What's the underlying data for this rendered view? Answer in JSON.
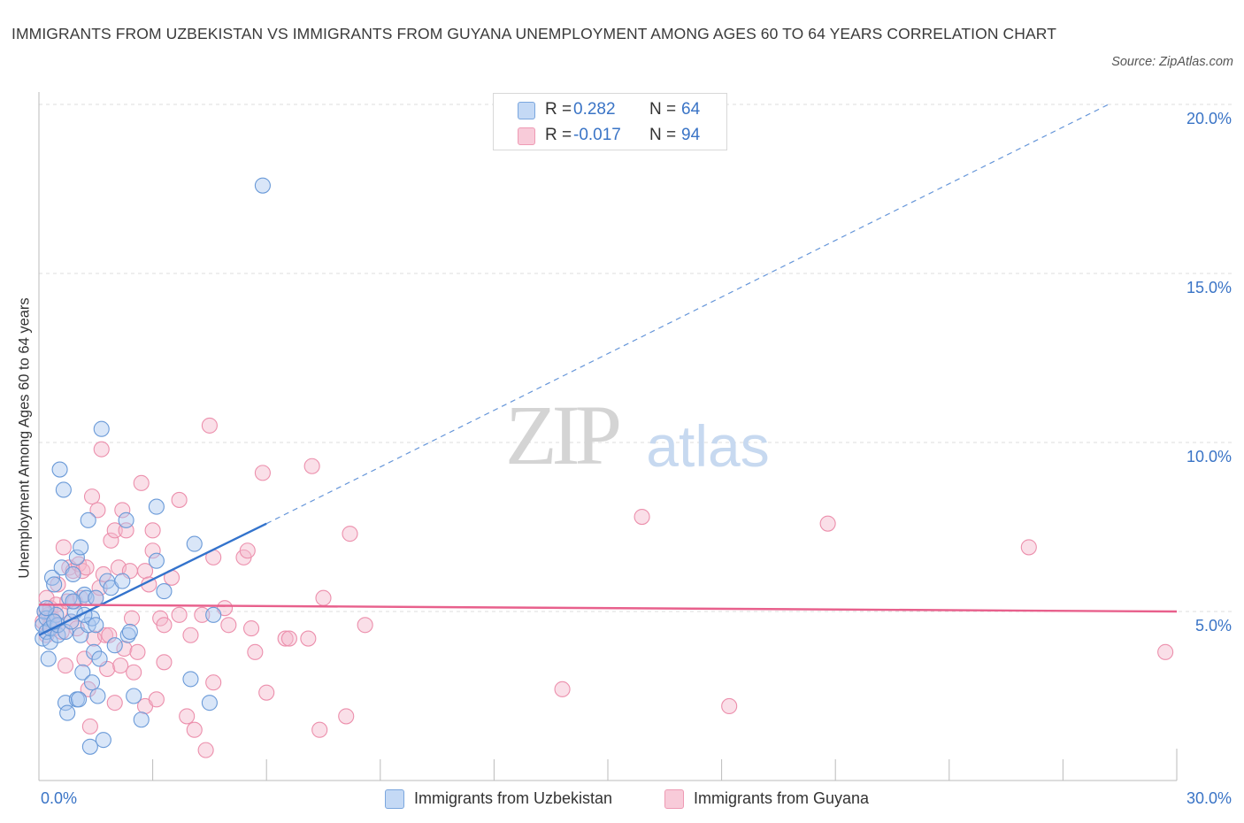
{
  "title": "IMMIGRANTS FROM UZBEKISTAN VS IMMIGRANTS FROM GUYANA UNEMPLOYMENT AMONG AGES 60 TO 64 YEARS CORRELATION CHART",
  "source": "Source: ZipAtlas.com",
  "watermark": {
    "zip": "ZIP",
    "atlas": "atlas"
  },
  "legend": {
    "rows": [
      {
        "r_label": "R =",
        "r_value": "0.282",
        "n_label": "N =",
        "n_value": "64"
      },
      {
        "r_label": "R =",
        "r_value": "-0.017",
        "n_label": "N =",
        "n_value": "94"
      }
    ]
  },
  "colors": {
    "uzbekistan_fill": "#aac8f0",
    "uzbekistan_stroke": "#6a9ad8",
    "uzbekistan_line": "#3373cc",
    "guyana_fill": "#f5b8cb",
    "guyana_stroke": "#ec8fac",
    "guyana_line": "#e8608c",
    "axis_label_color": "#3a74c6",
    "grid": "#dcdcdc"
  },
  "chart_data": {
    "type": "scatter",
    "title": "IMMIGRANTS FROM UZBEKISTAN VS IMMIGRANTS FROM GUYANA UNEMPLOYMENT AMONG AGES 60 TO 64 YEARS CORRELATION CHART",
    "xlabel": "",
    "ylabel": "Unemployment Among Ages 60 to 64 years",
    "xlim": [
      0,
      30
    ],
    "ylim": [
      0,
      20
    ],
    "x_tick_labels": [
      "0.0%",
      "30.0%"
    ],
    "y_tick_labels": [
      "5.0%",
      "10.0%",
      "15.0%",
      "20.0%"
    ],
    "y_ticks": [
      5,
      10,
      15,
      20
    ],
    "grid": true,
    "legend_position": "top-center",
    "series": [
      {
        "name": "Immigrants from Uzbekistan",
        "r": 0.282,
        "n": 64,
        "trend": {
          "x0": 0,
          "y0": 4.3,
          "x1": 6.0,
          "y1": 7.6,
          "dashed_to_x": 28.2,
          "dashed_to_y": 20.0
        },
        "points": [
          [
            0.1,
            4.2
          ],
          [
            0.1,
            4.6
          ],
          [
            0.15,
            5.0
          ],
          [
            0.2,
            4.4
          ],
          [
            0.2,
            4.8
          ],
          [
            0.25,
            3.6
          ],
          [
            0.3,
            4.1
          ],
          [
            0.3,
            4.5
          ],
          [
            0.35,
            6.0
          ],
          [
            0.4,
            5.8
          ],
          [
            0.45,
            4.9
          ],
          [
            0.5,
            4.3
          ],
          [
            0.5,
            4.6
          ],
          [
            0.55,
            9.2
          ],
          [
            0.6,
            6.3
          ],
          [
            0.65,
            8.6
          ],
          [
            0.7,
            2.3
          ],
          [
            0.7,
            4.4
          ],
          [
            0.75,
            2.0
          ],
          [
            0.8,
            5.4
          ],
          [
            0.85,
            4.7
          ],
          [
            0.9,
            6.1
          ],
          [
            0.95,
            5.0
          ],
          [
            1.0,
            6.6
          ],
          [
            1.0,
            2.4
          ],
          [
            1.05,
            2.4
          ],
          [
            1.1,
            6.9
          ],
          [
            1.1,
            4.3
          ],
          [
            1.15,
            3.2
          ],
          [
            1.2,
            5.5
          ],
          [
            1.25,
            5.4
          ],
          [
            1.3,
            4.6
          ],
          [
            1.3,
            7.7
          ],
          [
            1.35,
            1.0
          ],
          [
            1.4,
            2.9
          ],
          [
            1.4,
            4.8
          ],
          [
            1.45,
            3.8
          ],
          [
            1.5,
            4.6
          ],
          [
            1.5,
            5.4
          ],
          [
            1.55,
            2.5
          ],
          [
            1.6,
            3.6
          ],
          [
            1.65,
            10.4
          ],
          [
            1.7,
            1.2
          ],
          [
            1.8,
            5.9
          ],
          [
            1.9,
            5.7
          ],
          [
            2.0,
            4.0
          ],
          [
            2.2,
            5.9
          ],
          [
            2.3,
            7.7
          ],
          [
            2.35,
            4.3
          ],
          [
            2.4,
            4.4
          ],
          [
            2.5,
            2.5
          ],
          [
            2.7,
            1.8
          ],
          [
            3.1,
            6.5
          ],
          [
            3.1,
            8.1
          ],
          [
            3.3,
            5.6
          ],
          [
            4.0,
            3.0
          ],
          [
            4.1,
            7.0
          ],
          [
            4.5,
            2.3
          ],
          [
            4.6,
            4.9
          ],
          [
            5.9,
            17.6
          ],
          [
            0.4,
            4.7
          ],
          [
            0.9,
            5.3
          ],
          [
            0.2,
            5.1
          ],
          [
            1.2,
            4.9
          ]
        ]
      },
      {
        "name": "Immigrants from Guyana",
        "r": -0.017,
        "n": 94,
        "trend": {
          "x0": 0,
          "y0": 5.2,
          "x1": 30,
          "y1": 5.0
        },
        "points": [
          [
            0.1,
            4.7
          ],
          [
            0.15,
            5.0
          ],
          [
            0.2,
            4.3
          ],
          [
            0.2,
            5.4
          ],
          [
            0.25,
            4.9
          ],
          [
            0.3,
            4.6
          ],
          [
            0.3,
            5.1
          ],
          [
            0.35,
            4.8
          ],
          [
            0.4,
            4.5
          ],
          [
            0.45,
            5.2
          ],
          [
            0.5,
            4.6
          ],
          [
            0.5,
            5.8
          ],
          [
            0.55,
            5.0
          ],
          [
            0.6,
            4.4
          ],
          [
            0.65,
            6.9
          ],
          [
            0.7,
            3.4
          ],
          [
            0.75,
            5.3
          ],
          [
            0.8,
            6.3
          ],
          [
            0.85,
            4.7
          ],
          [
            0.9,
            6.2
          ],
          [
            0.95,
            5.3
          ],
          [
            1.0,
            4.5
          ],
          [
            1.05,
            6.4
          ],
          [
            1.1,
            5.4
          ],
          [
            1.15,
            6.2
          ],
          [
            1.2,
            3.6
          ],
          [
            1.25,
            6.3
          ],
          [
            1.3,
            2.7
          ],
          [
            1.35,
            1.6
          ],
          [
            1.4,
            8.4
          ],
          [
            1.45,
            4.2
          ],
          [
            1.5,
            5.4
          ],
          [
            1.55,
            8.0
          ],
          [
            1.6,
            5.7
          ],
          [
            1.65,
            9.8
          ],
          [
            1.7,
            6.1
          ],
          [
            1.75,
            4.3
          ],
          [
            1.8,
            3.3
          ],
          [
            1.85,
            4.3
          ],
          [
            1.9,
            7.1
          ],
          [
            2.0,
            2.3
          ],
          [
            2.0,
            7.4
          ],
          [
            2.1,
            6.3
          ],
          [
            2.15,
            3.4
          ],
          [
            2.2,
            8.0
          ],
          [
            2.25,
            3.9
          ],
          [
            2.3,
            7.4
          ],
          [
            2.4,
            6.2
          ],
          [
            2.45,
            4.8
          ],
          [
            2.5,
            3.2
          ],
          [
            2.6,
            3.8
          ],
          [
            2.7,
            8.8
          ],
          [
            2.8,
            2.2
          ],
          [
            2.8,
            6.2
          ],
          [
            2.9,
            5.8
          ],
          [
            3.0,
            7.4
          ],
          [
            3.0,
            6.8
          ],
          [
            3.1,
            2.4
          ],
          [
            3.2,
            4.8
          ],
          [
            3.3,
            3.5
          ],
          [
            3.3,
            4.6
          ],
          [
            3.5,
            6.0
          ],
          [
            3.7,
            8.3
          ],
          [
            3.7,
            4.9
          ],
          [
            3.9,
            1.9
          ],
          [
            4.0,
            4.3
          ],
          [
            4.1,
            1.5
          ],
          [
            4.3,
            4.9
          ],
          [
            4.4,
            0.9
          ],
          [
            4.5,
            10.5
          ],
          [
            4.6,
            6.6
          ],
          [
            4.6,
            2.9
          ],
          [
            4.9,
            5.1
          ],
          [
            5.0,
            4.6
          ],
          [
            5.4,
            6.6
          ],
          [
            5.5,
            6.8
          ],
          [
            5.6,
            4.5
          ],
          [
            5.7,
            3.8
          ],
          [
            5.9,
            9.1
          ],
          [
            6.0,
            2.6
          ],
          [
            6.5,
            4.2
          ],
          [
            6.6,
            4.2
          ],
          [
            7.1,
            4.2
          ],
          [
            7.2,
            9.3
          ],
          [
            7.4,
            1.5
          ],
          [
            7.5,
            5.4
          ],
          [
            8.1,
            1.9
          ],
          [
            8.2,
            7.3
          ],
          [
            8.6,
            4.6
          ],
          [
            13.8,
            2.7
          ],
          [
            15.9,
            7.8
          ],
          [
            18.2,
            2.2
          ],
          [
            20.8,
            7.6
          ],
          [
            26.1,
            6.9
          ],
          [
            29.7,
            3.8
          ]
        ]
      }
    ]
  },
  "bottom_legend": {
    "items": [
      {
        "label": "Immigrants from Uzbekistan"
      },
      {
        "label": "Immigrants from Guyana"
      }
    ]
  }
}
